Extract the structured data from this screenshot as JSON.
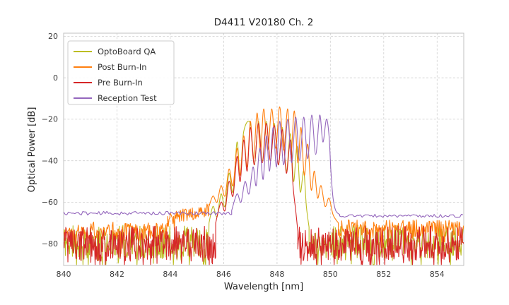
{
  "chart_data": {
    "type": "line",
    "title": "D4411 V20180 Ch. 2",
    "xlabel": "Wavelength [nm]",
    "ylabel": "Optical Power [dB]",
    "xlim": [
      840,
      855
    ],
    "ylim": [
      -90.5,
      21.5
    ],
    "xticks": [
      840,
      842,
      844,
      846,
      848,
      850,
      852,
      854
    ],
    "yticks": [
      20,
      0,
      -20,
      -40,
      -60,
      -80
    ],
    "grid": true,
    "legend_position": "upper left",
    "series": [
      {
        "name": "OptoBoard QA",
        "color": "#bcbd22",
        "seed": 11,
        "segments": [
          {
            "type": "noise",
            "x0": 840,
            "x1": 845.45,
            "mean": -79,
            "spread": 8,
            "spike_prob": 0.2,
            "spike_depth": 9,
            "step": 0.022
          },
          {
            "type": "smooth",
            "points": [
              [
                845.45,
                -70
              ],
              [
                845.6,
                -62
              ],
              [
                845.75,
                -67
              ],
              [
                845.9,
                -56
              ],
              [
                846.05,
                -62
              ],
              [
                846.2,
                -46
              ],
              [
                846.35,
                -55
              ],
              [
                846.5,
                -31
              ],
              [
                846.62,
                -47
              ],
              [
                846.75,
                -26
              ],
              [
                847,
                -22
              ],
              [
                847.15,
                -42
              ],
              [
                847.3,
                -21
              ],
              [
                847.45,
                -40
              ],
              [
                847.6,
                -21
              ],
              [
                847.75,
                -40
              ],
              [
                847.9,
                -22
              ],
              [
                848.05,
                -42
              ],
              [
                848.2,
                -24
              ],
              [
                848.35,
                -45
              ],
              [
                848.5,
                -27
              ],
              [
                848.62,
                -50
              ],
              [
                848.75,
                -33
              ],
              [
                848.87,
                -55
              ],
              [
                849,
                -45
              ],
              [
                849.1,
                -62
              ],
              [
                849.2,
                -72
              ]
            ]
          },
          {
            "type": "noise",
            "x0": 849.2,
            "x1": 855,
            "mean": -79,
            "spread": 8,
            "spike_prob": 0.2,
            "spike_depth": 9,
            "step": 0.022
          }
        ]
      },
      {
        "name": "Post Burn-In",
        "color": "#ff7f0e",
        "seed": 22,
        "segments": [
          {
            "type": "noise",
            "x0": 840,
            "x1": 843.9,
            "mean": -74,
            "spread": 4.5,
            "spike_prob": 0.12,
            "spike_depth": 8,
            "step": 0.025
          },
          {
            "type": "noise",
            "x0": 843.9,
            "x1": 845.45,
            "mean": -69,
            "mean2": -63,
            "spread": 3.5,
            "spike_prob": 0.08,
            "spike_depth": 6,
            "step": 0.025
          },
          {
            "type": "smooth",
            "points": [
              [
                845.45,
                -62
              ],
              [
                845.6,
                -57
              ],
              [
                845.75,
                -60
              ],
              [
                845.9,
                -52
              ],
              [
                846.05,
                -57
              ],
              [
                846.2,
                -44
              ],
              [
                846.35,
                -52
              ],
              [
                846.5,
                -34
              ],
              [
                846.62,
                -47
              ],
              [
                846.75,
                -28
              ],
              [
                846.88,
                -43
              ],
              [
                847,
                -21
              ],
              [
                847.12,
                -39
              ],
              [
                847.25,
                -17
              ],
              [
                847.38,
                -36
              ],
              [
                847.5,
                -15
              ],
              [
                847.65,
                -35
              ],
              [
                847.8,
                -15
              ],
              [
                847.95,
                -34
              ],
              [
                848.1,
                -14
              ],
              [
                848.25,
                -35
              ],
              [
                848.4,
                -15
              ],
              [
                848.52,
                -37
              ],
              [
                848.65,
                -16
              ],
              [
                848.78,
                -41
              ],
              [
                848.9,
                -24
              ],
              [
                849.02,
                -47
              ],
              [
                849.15,
                -32
              ],
              [
                849.28,
                -54
              ],
              [
                849.4,
                -45
              ],
              [
                849.52,
                -58
              ],
              [
                849.65,
                -52
              ],
              [
                849.8,
                -62
              ],
              [
                849.95,
                -58
              ],
              [
                850.1,
                -66
              ],
              [
                850.3,
                -70
              ]
            ]
          },
          {
            "type": "noise",
            "x0": 850.3,
            "x1": 855,
            "mean": -73,
            "spread": 4.5,
            "spike_prob": 0.12,
            "spike_depth": 8,
            "step": 0.025
          }
        ]
      },
      {
        "name": "Pre Burn-In",
        "color": "#d62728",
        "seed": 33,
        "segments": [
          {
            "type": "noise",
            "x0": 840,
            "x1": 845.7,
            "mean": -80,
            "spread": 8.5,
            "spike_prob": 0.22,
            "spike_depth": 9,
            "step": 0.02
          },
          {
            "type": "smooth",
            "points": [
              [
                845.7,
                -70
              ],
              [
                845.9,
                -60
              ],
              [
                846.05,
                -64
              ],
              [
                846.2,
                -50
              ],
              [
                846.35,
                -57
              ],
              [
                846.5,
                -38
              ],
              [
                846.62,
                -50
              ],
              [
                846.75,
                -30
              ],
              [
                846.88,
                -45
              ],
              [
                847,
                -24
              ],
              [
                847.15,
                -42
              ],
              [
                847.3,
                -22
              ],
              [
                847.45,
                -41
              ],
              [
                847.6,
                -22
              ],
              [
                847.75,
                -40
              ],
              [
                847.9,
                -23
              ],
              [
                848.05,
                -42
              ],
              [
                848.2,
                -25
              ],
              [
                848.35,
                -46
              ],
              [
                848.5,
                -30
              ],
              [
                848.6,
                -52
              ],
              [
                848.7,
                -64
              ],
              [
                848.78,
                -74
              ]
            ]
          },
          {
            "type": "noise",
            "x0": 848.78,
            "x1": 855,
            "mean": -80,
            "spread": 8.5,
            "spike_prob": 0.22,
            "spike_depth": 9,
            "step": 0.02
          }
        ]
      },
      {
        "name": "Reception Test",
        "color": "#9467bd",
        "seed": 44,
        "segments": [
          {
            "type": "noise",
            "x0": 840,
            "x1": 846.3,
            "mean": -65.3,
            "spread": 0.9,
            "step": 0.06
          },
          {
            "type": "smooth",
            "points": [
              [
                846.3,
                -64
              ],
              [
                846.5,
                -56
              ],
              [
                846.65,
                -60
              ],
              [
                846.8,
                -50
              ],
              [
                846.95,
                -56
              ],
              [
                847.1,
                -43
              ],
              [
                847.22,
                -52
              ],
              [
                847.35,
                -34
              ],
              [
                847.48,
                -49
              ],
              [
                847.6,
                -28
              ],
              [
                847.72,
                -45
              ],
              [
                847.85,
                -24
              ],
              [
                847.98,
                -43
              ],
              [
                848.1,
                -21
              ],
              [
                848.25,
                -42
              ],
              [
                848.4,
                -20
              ],
              [
                848.55,
                -41
              ],
              [
                848.7,
                -19
              ],
              [
                848.85,
                -40
              ],
              [
                849,
                -19
              ],
              [
                849.15,
                -39
              ],
              [
                849.3,
                -18
              ],
              [
                849.45,
                -37
              ],
              [
                849.6,
                -18
              ],
              [
                849.72,
                -31
              ],
              [
                849.85,
                -20
              ],
              [
                849.95,
                -28
              ],
              [
                850.02,
                -45
              ],
              [
                850.1,
                -58
              ],
              [
                850.2,
                -64
              ],
              [
                850.35,
                -66
              ]
            ]
          },
          {
            "type": "noise",
            "x0": 850.35,
            "x1": 855,
            "mean": -66.6,
            "spread": 0.8,
            "step": 0.06
          }
        ]
      }
    ]
  }
}
